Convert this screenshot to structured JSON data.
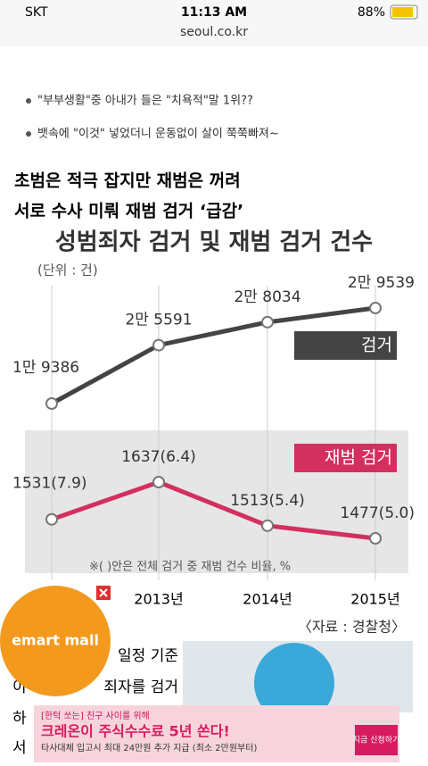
{
  "status_bar": {
    "carrier": "SKT",
    "time": "11:13 AM",
    "battery": "88%",
    "url": "seoul.co.kr"
  },
  "links": [
    "\"부부생활\"중 아내가 들은 \"치욕적\"말 1위??",
    "뱃속에 \"이것\" 넣었더니 운동없이 살이 쭉쭉빠져~"
  ],
  "headline": [
    "초범은 적극 잡지만 재범은 꺼려",
    "서로 수사 미뤄 재범 검거 ‘급감’"
  ],
  "chart": {
    "title": "성범죄자 검거 및 재범 검거 건수",
    "unit": "(단위 : 건)",
    "categories": [
      null,
      "2013년",
      "2014년",
      "2015년"
    ],
    "series": [
      {
        "name": "검거",
        "color": "#444444",
        "values": [
          19386,
          25591,
          28034,
          29539
        ],
        "value_labels": [
          "1만 9386",
          "2만 5591",
          "2만 8034",
          "2만 9539"
        ]
      },
      {
        "name": "재범 검거",
        "color": "#d3305f",
        "values": [
          1531,
          1637,
          1513,
          1477
        ],
        "value_labels": [
          "1531(7.9)",
          "1637(6.4)",
          "1513(5.4)",
          "1477(5.0)"
        ]
      }
    ],
    "note": "※(     )안은 전체 검거 중 재범 건수 비율, %",
    "source": "〈자료 : 경찰청〉"
  },
  "article": [
    "일정 기준",
    "죄자를 검거",
    "이",
    "하",
    "서"
  ],
  "ads": {
    "emart": "emart mall",
    "banner": {
      "kicker": "[한턱 쏘는] 친구 사이를 위해",
      "headline": "크레온이 주식수수료 5년 쏜다!",
      "detail": "타사대체 입고시 최대 24만원 추가 지급 (최소 2만원부터)",
      "button": "지금 신청하기"
    }
  }
}
